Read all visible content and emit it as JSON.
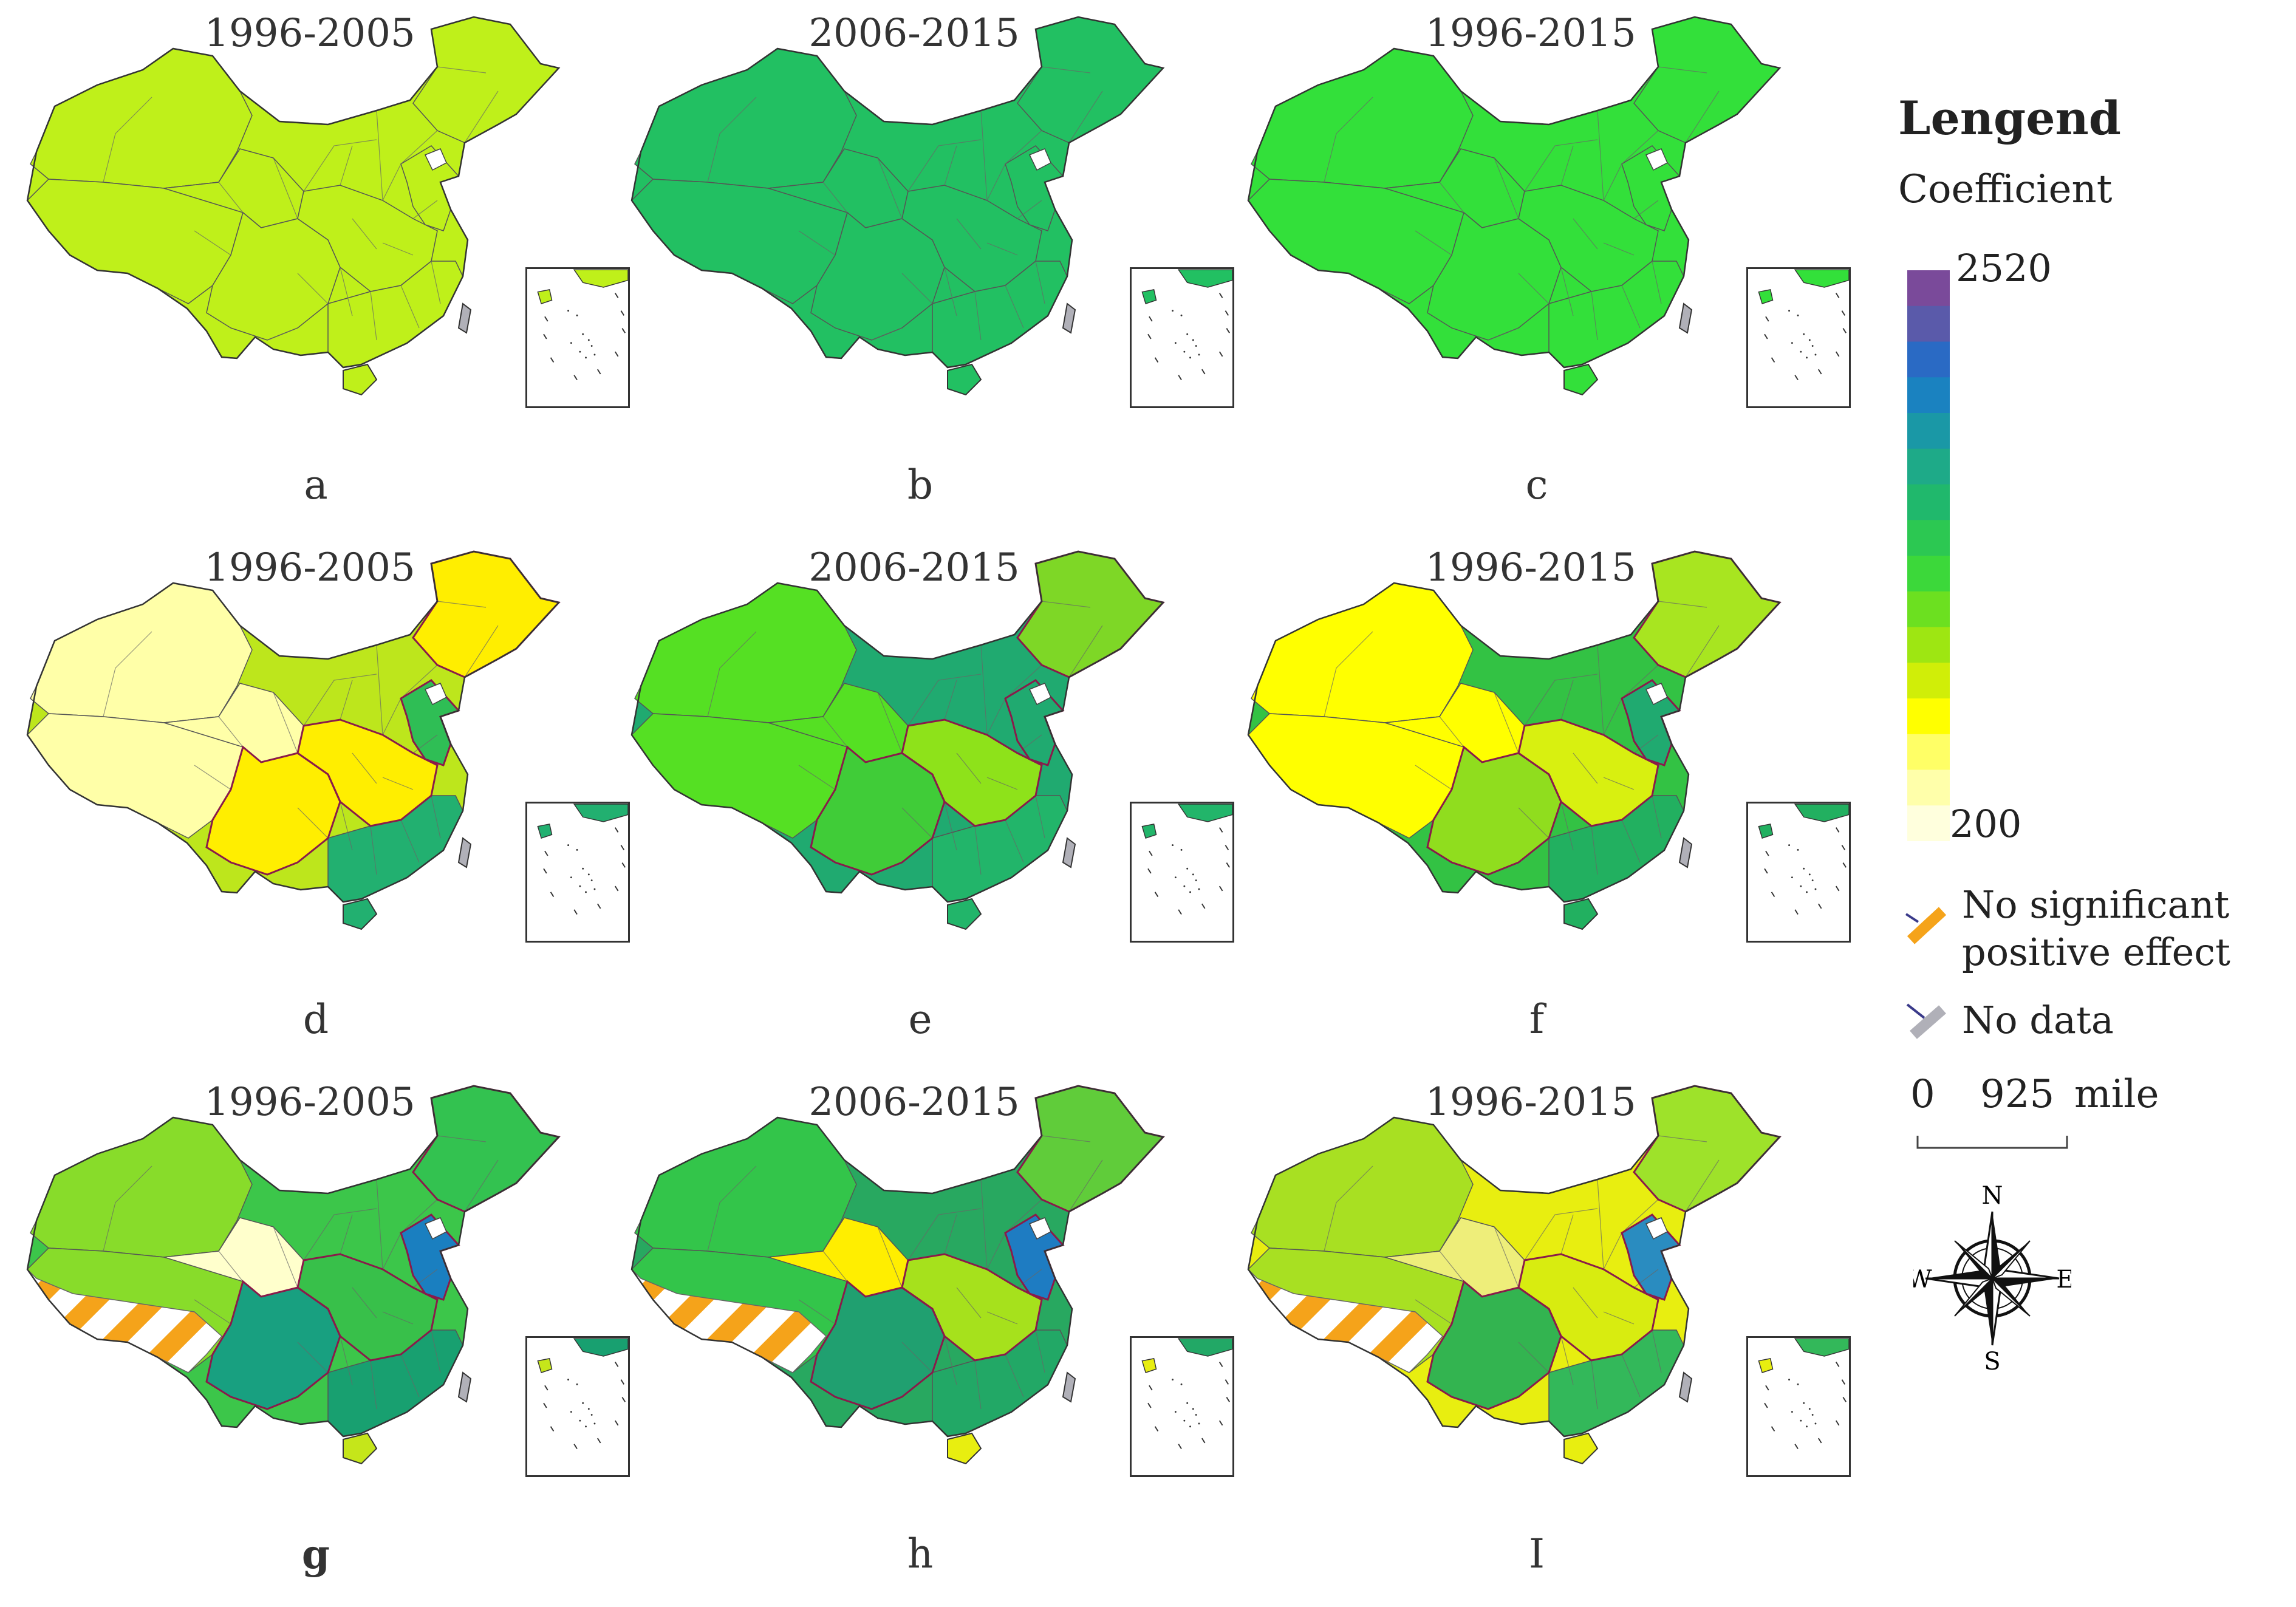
{
  "panels": [
    {
      "id": "a",
      "period": "1996-2005",
      "letter": "a",
      "colors": {
        "base": "#bff01a",
        "xj": "#bff01a",
        "xz": "#bff01a",
        "qh": "#bff01a",
        "sc": "#bff01a",
        "central": "#bff01a",
        "east": "#bff01a",
        "ne": "#bff01a",
        "south": "#bff01a",
        "hainan": "#bff01a"
      }
    },
    {
      "id": "b",
      "period": "2006-2015",
      "letter": "b",
      "colors": {
        "base": "#22c062",
        "xj": "#22c062",
        "xz": "#22c062",
        "qh": "#22c062",
        "sc": "#22c062",
        "central": "#22c062",
        "east": "#22c062",
        "ne": "#22c062",
        "south": "#22c062",
        "hainan": "#22c062"
      }
    },
    {
      "id": "c",
      "period": "1996-2015",
      "letter": "c",
      "colors": {
        "base": "#33e03a",
        "xj": "#33e03a",
        "xz": "#33e03a",
        "qh": "#33e03a",
        "sc": "#33e03a",
        "central": "#33e03a",
        "east": "#33e03a",
        "ne": "#33e03a",
        "south": "#33e03a",
        "hainan": "#33e03a"
      }
    },
    {
      "id": "d",
      "period": "1996-2005",
      "letter": "d",
      "colors": {
        "base": "#bde61c",
        "xj": "#ffffa8",
        "xz": "#ffffa8",
        "qh": "#ffffa8",
        "sc": "#ffee00",
        "central": "#ffee00",
        "east": "#2fbe55",
        "ne": "#ffee00",
        "south": "#22b070",
        "hainan": "#22b070"
      }
    },
    {
      "id": "e",
      "period": "2006-2015",
      "letter": "e",
      "colors": {
        "base": "#20aa70",
        "xj": "#55e023",
        "xz": "#55e023",
        "qh": "#55e023",
        "sc": "#40cc38",
        "central": "#8ee21a",
        "east": "#20aa70",
        "ne": "#7ed726",
        "south": "#22b56a",
        "hainan": "#22b56a"
      }
    },
    {
      "id": "f",
      "period": "1996-2015",
      "letter": "f",
      "colors": {
        "base": "#33c244",
        "xj": "#ffff00",
        "xz": "#ffff00",
        "qh": "#ffff00",
        "sc": "#90dd1e",
        "central": "#d8f010",
        "east": "#20aa70",
        "ne": "#a8e520",
        "south": "#22b060",
        "hainan": "#22b060"
      }
    },
    {
      "id": "g",
      "period": "1996-2005",
      "letter": "g",
      "hatch": true,
      "colors": {
        "base": "#3cc64a",
        "xj": "#88dc2a",
        "xz": "#88dc2a",
        "qh": "#ffffcc",
        "sc": "#18a080",
        "central": "#38c04a",
        "east": "#1a7fc0",
        "ne": "#33c250",
        "south": "#18a070",
        "hainan": "#c5e61a"
      }
    },
    {
      "id": "h",
      "period": "2006-2015",
      "letter": "h",
      "hatch": true,
      "colors": {
        "base": "#28a860",
        "xj": "#33c54a",
        "xz": "#33c54a",
        "qh": "#ffee00",
        "sc": "#20a070",
        "central": "#a6e11c",
        "east": "#1e7cc2",
        "ne": "#60cc3a",
        "south": "#22a866",
        "hainan": "#e8ee10"
      }
    },
    {
      "id": "i",
      "period": "1996-2015",
      "letter": "I",
      "hatch": true,
      "colors": {
        "base": "#e8ee10",
        "xj": "#a8e022",
        "xz": "#a8e022",
        "qh": "#eeee7a",
        "sc": "#33b450",
        "central": "#d8ec10",
        "east": "#2a8cc0",
        "ne": "#9ee22a",
        "south": "#33b85a",
        "hainan": "#e8ee10"
      }
    }
  ],
  "legend": {
    "title": "Lengend",
    "subtitle": "Coefficient",
    "max_label": "2520",
    "min_label": "200",
    "ramp_colors": [
      "#7a4a9a",
      "#5a5aaa",
      "#2a6ac4",
      "#1a82c0",
      "#1a98a6",
      "#1eaa88",
      "#20b86c",
      "#2cc852",
      "#3cd83a",
      "#6ce020",
      "#9ee612",
      "#d0ee08",
      "#ffff00",
      "#ffff66",
      "#ffffaa",
      "#ffffdd"
    ],
    "no_sig_label_line1": "No significant",
    "no_sig_label_line2": "positive effect",
    "no_data_label": "No data",
    "scale_zero": "0",
    "scale_value": "925",
    "scale_unit": "mile",
    "compass": {
      "n": "N",
      "s": "S",
      "e": "E",
      "w": "W"
    },
    "hatch_color": "#f5a31a",
    "no_data_color": "#b0b0b8"
  }
}
